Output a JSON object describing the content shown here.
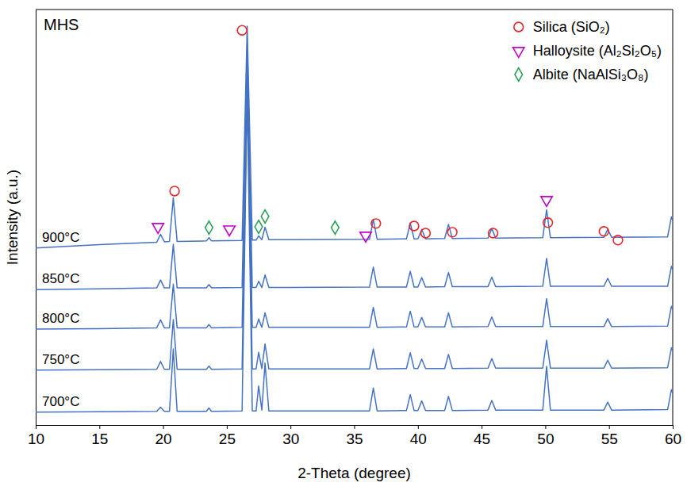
{
  "chart_data": {
    "type": "line",
    "title": "MHS",
    "xlabel": "2-Theta (degree)",
    "ylabel": "Intensity (a.u.)",
    "x": [
      10,
      15,
      19.5,
      19.8,
      20.1,
      20.5,
      20.8,
      21.1,
      23.4,
      23.6,
      23.8,
      26.2,
      26.6,
      27.0,
      27.3,
      27.5,
      27.75,
      28.0,
      28.3,
      30,
      36.2,
      36.5,
      36.8,
      39.1,
      39.4,
      39.7,
      40.0,
      40.3,
      40.6,
      42.1,
      42.4,
      42.7,
      45.5,
      45.8,
      46.1,
      49.8,
      50.1,
      50.4,
      54.6,
      54.9,
      55.2,
      59.6,
      59.9,
      60
    ],
    "series": [
      {
        "name": "900°C",
        "color": "#4472c4",
        "values": [
          42.6,
          43.4,
          44.0,
          45.9,
          44.1,
          44.2,
          54.7,
          44.2,
          44.3,
          45.1,
          44.3,
          44.4,
          96,
          44.5,
          44.5,
          45.5,
          44.6,
          47.6,
          44.6,
          44.6,
          44.7,
          49.5,
          44.7,
          44.8,
          48.6,
          44.8,
          44.8,
          47.1,
          44.8,
          44.9,
          48.3,
          44.9,
          45.0,
          47.3,
          45.0,
          45.1,
          51.8,
          45.1,
          45.2,
          47.1,
          45.2,
          45.3,
          50.1,
          49.3
        ]
      },
      {
        "name": "850°C",
        "color": "#4472c4",
        "values": [
          32.6,
          32.8,
          33.0,
          34.9,
          33.0,
          33.0,
          43.5,
          33.0,
          33.0,
          33.8,
          33.0,
          33.1,
          90,
          33.1,
          33.1,
          34.6,
          33.1,
          36.1,
          33.1,
          33.1,
          33.2,
          38.0,
          33.2,
          33.2,
          37.0,
          33.2,
          33.2,
          35.5,
          33.2,
          33.3,
          36.7,
          33.3,
          33.3,
          35.6,
          33.3,
          33.4,
          40.1,
          33.4,
          33.4,
          35.3,
          33.4,
          33.4,
          38.2,
          37.4
        ]
      },
      {
        "name": "800°C",
        "color": "#4472c4",
        "values": [
          23.1,
          23.2,
          23.4,
          25.3,
          23.4,
          23.4,
          33.9,
          23.4,
          23.4,
          24.2,
          23.4,
          23.5,
          86,
          23.5,
          23.5,
          25.5,
          23.5,
          27.0,
          23.5,
          23.5,
          23.5,
          28.3,
          23.5,
          23.6,
          27.4,
          23.6,
          23.6,
          25.9,
          23.6,
          23.6,
          27.0,
          23.6,
          23.7,
          26.0,
          23.7,
          23.7,
          30.4,
          23.7,
          23.7,
          25.6,
          23.7,
          23.8,
          28.6,
          27.8
        ]
      },
      {
        "name": "750°C",
        "color": "#4472c4",
        "values": [
          13.2,
          13.3,
          13.4,
          15.3,
          13.4,
          13.4,
          25.4,
          13.4,
          13.4,
          14.2,
          13.4,
          13.5,
          83,
          13.5,
          13.5,
          17.5,
          13.6,
          19.5,
          13.5,
          13.5,
          13.5,
          18.3,
          13.5,
          13.6,
          17.4,
          13.6,
          13.6,
          15.9,
          13.6,
          13.6,
          17.0,
          13.6,
          13.7,
          16.0,
          13.7,
          13.7,
          20.4,
          13.7,
          13.7,
          15.6,
          13.7,
          13.8,
          18.6,
          17.8
        ]
      },
      {
        "name": "700°C",
        "color": "#4472c4",
        "values": [
          3.1,
          3.2,
          3.3,
          4.3,
          3.3,
          3.3,
          18.3,
          3.3,
          3.3,
          4.1,
          3.3,
          3.4,
          80,
          3.4,
          3.4,
          9.4,
          3.6,
          14.9,
          3.4,
          3.4,
          3.4,
          8.9,
          3.4,
          3.5,
          7.3,
          3.5,
          3.5,
          5.8,
          3.5,
          3.5,
          6.9,
          3.5,
          3.6,
          5.9,
          3.6,
          3.6,
          14.1,
          3.6,
          3.6,
          5.5,
          3.6,
          3.7,
          8.5,
          7.7
        ]
      }
    ],
    "phases": [
      {
        "name": "Silica (SiO₂)",
        "color": "#e8262a",
        "marker": "circle",
        "x": [
          26.2,
          20.9,
          36.7,
          39.7,
          40.6,
          42.7,
          45.9,
          50.2,
          54.6,
          55.7
        ],
        "y": [
          95,
          56.3,
          48.5,
          47.9,
          46.2,
          46.4,
          46.2,
          48.7,
          46.6,
          44.5
        ]
      },
      {
        "name": "Halloysite (Al₂Si₂O₅)",
        "color": "#c000c8",
        "marker": "triangle-down",
        "x": [
          19.6,
          25.2,
          35.9,
          50.1
        ],
        "y": [
          47.7,
          47.1,
          45.6,
          54.2
        ]
      },
      {
        "name": "Albite (NaAlSi₃O₈)",
        "color": "#2ca05a",
        "marker": "diamond",
        "x": [
          23.6,
          27.5,
          28.0,
          33.5
        ],
        "y": [
          47.5,
          47.7,
          50.2,
          47.5
        ]
      }
    ],
    "xlim": [
      10,
      60
    ],
    "xticks": [
      10,
      15,
      20,
      25,
      30,
      35,
      40,
      45,
      50,
      55,
      60
    ],
    "ylim": [
      0,
      100
    ],
    "tick_labels": "x",
    "grid": false,
    "legend": "top-right"
  }
}
